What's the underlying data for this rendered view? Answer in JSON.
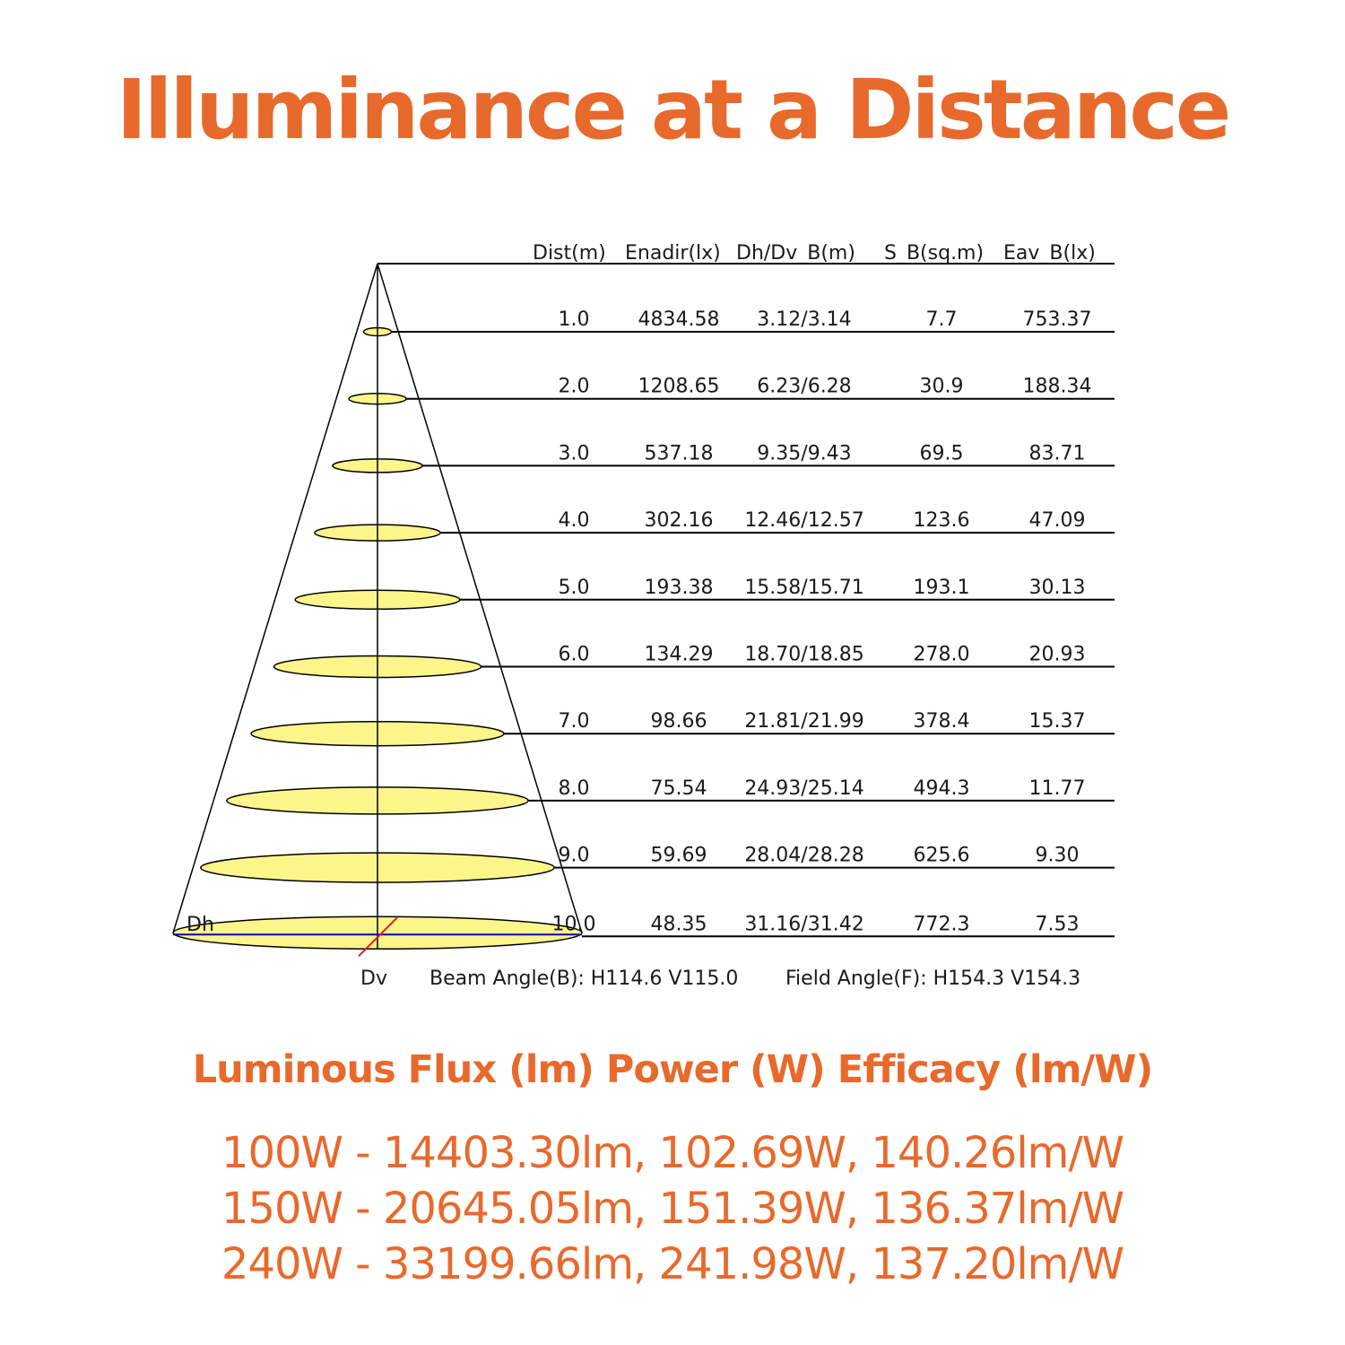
{
  "title": "Illuminance at a Distance",
  "diagram": {
    "headers": [
      "Dist(m)",
      "Enadir(lx)",
      "Dh/Dv_B(m)",
      "S_B(sq.m)",
      "Eav_B(lx)"
    ],
    "rows": [
      {
        "dist": "1.0",
        "enadir": "4834.58",
        "dhdv": "3.12/3.14",
        "sb": "7.7",
        "eav": "753.37"
      },
      {
        "dist": "2.0",
        "enadir": "1208.65",
        "dhdv": "6.23/6.28",
        "sb": "30.9",
        "eav": "188.34"
      },
      {
        "dist": "3.0",
        "enadir": "537.18",
        "dhdv": "9.35/9.43",
        "sb": "69.5",
        "eav": "83.71"
      },
      {
        "dist": "4.0",
        "enadir": "302.16",
        "dhdv": "12.46/12.57",
        "sb": "123.6",
        "eav": "47.09"
      },
      {
        "dist": "5.0",
        "enadir": "193.38",
        "dhdv": "15.58/15.71",
        "sb": "193.1",
        "eav": "30.13"
      },
      {
        "dist": "6.0",
        "enadir": "134.29",
        "dhdv": "18.70/18.85",
        "sb": "278.0",
        "eav": "20.93"
      },
      {
        "dist": "7.0",
        "enadir": "98.66",
        "dhdv": "21.81/21.99",
        "sb": "378.4",
        "eav": "15.37"
      },
      {
        "dist": "8.0",
        "enadir": "75.54",
        "dhdv": "24.93/25.14",
        "sb": "494.3",
        "eav": "11.77"
      },
      {
        "dist": "9.0",
        "enadir": "59.69",
        "dhdv": "28.04/28.28",
        "sb": "625.6",
        "eav": "9.30"
      },
      {
        "dist": "10.0",
        "enadir": "48.35",
        "dhdv": "31.16/31.42",
        "sb": "772.3",
        "eav": "7.53"
      }
    ],
    "label_dh": "Dh",
    "label_dv": "Dv",
    "beam_angle": "Beam Angle(B): H114.6 V115.0",
    "field_angle": "Field Angle(F): H154.3 V154.3",
    "colors": {
      "ellipse_fill": "#fbf58a",
      "axis_h": "#0000cc",
      "axis_v": "#e02020"
    }
  },
  "specs": {
    "heading": "Luminous Flux (lm) Power (W) Efficacy (lm/W)",
    "lines": [
      "100W  - 14403.30lm, 102.69W, 140.26lm/W",
      "150W  - 20645.05lm,  151.39W,  136.37lm/W",
      "240W - 33199.66lm, 241.98W,  137.20lm/W"
    ]
  }
}
